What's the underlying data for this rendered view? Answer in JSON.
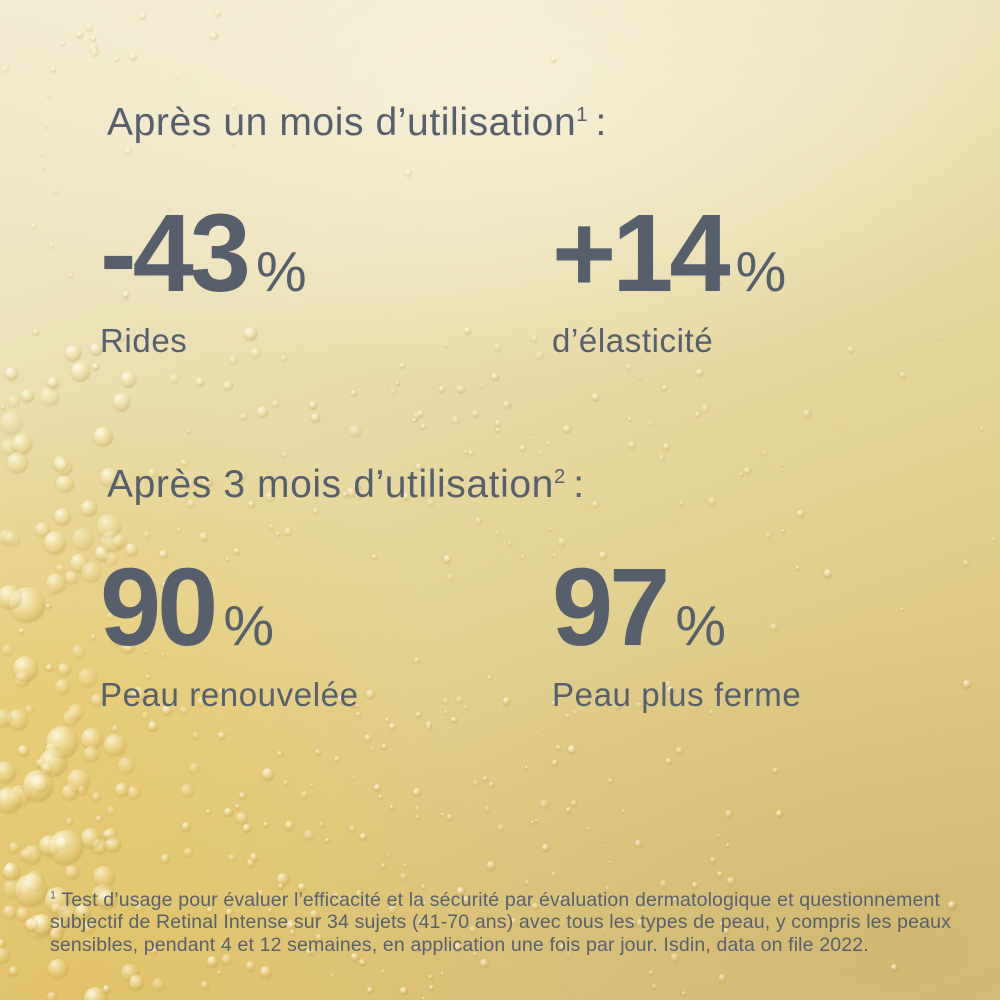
{
  "sections": [
    {
      "heading": "Après un mois d’utilisation",
      "heading_sup": "1",
      "heading_suffix": ":",
      "stats": [
        {
          "value": "-43",
          "unit": "%",
          "label": "Rides"
        },
        {
          "value": "+14",
          "unit": "%",
          "label": "d’élasticité"
        }
      ]
    },
    {
      "heading": "Après 3 mois d’utilisation",
      "heading_sup": "2",
      "heading_suffix": ":",
      "stats": [
        {
          "value": "90",
          "unit": "%",
          "label": "Peau renouvelée"
        },
        {
          "value": "97",
          "unit": "%",
          "label": "Peau plus ferme"
        }
      ]
    }
  ],
  "footnote": {
    "sup": "1",
    "text": "Test d’usage pour évaluer l’efficacité et la sécurité par évaluation dermatologique et questionnement subjectif de Retinal Intense sur 34 sujets (41-70 ans) avec tous les types de peau, y compris les peaux sensibles, pendant 4 et 12 semaines, en application une fois par jour. Isdin, data on file 2022."
  },
  "colors": {
    "text": "#575f6d",
    "footnote_text": "#59606e",
    "background_top_left": "#f2ebd0",
    "background_bottom_right": "#d8bf7a",
    "gold_accent": "#e4c672"
  }
}
